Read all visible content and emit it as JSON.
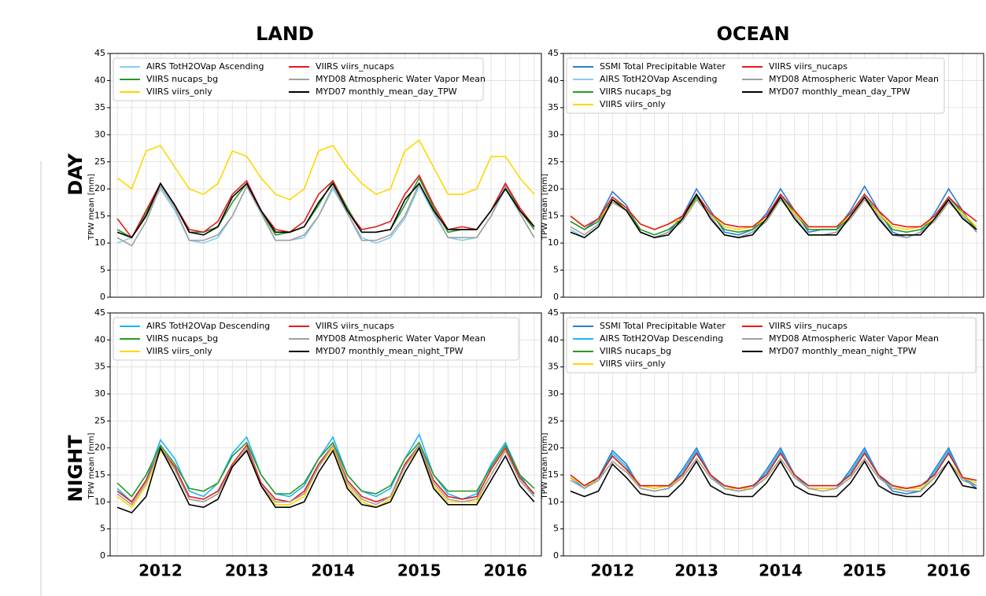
{
  "header": {
    "land": "LAND",
    "ocean": "OCEAN",
    "day": "DAY",
    "night": "NIGHT"
  },
  "chart_data": [
    {
      "type": "line",
      "ylabel": "TPW mean [mm]",
      "ylim": [
        0,
        45
      ],
      "yticks": [
        0,
        5,
        10,
        15,
        20,
        25,
        30,
        35,
        40,
        45
      ],
      "grid": true,
      "categories": [
        null,
        null,
        null,
        null,
        null,
        null,
        null,
        null,
        null,
        null,
        null,
        null,
        null,
        null,
        null,
        null,
        null,
        null,
        null,
        null,
        null,
        null,
        null,
        null,
        null,
        null,
        null,
        null,
        null,
        null
      ],
      "series": [
        {
          "name": "AIRS TotH2OVap Ascending",
          "color": "#87ceeb",
          "values": [
            10,
            11,
            15,
            20,
            16,
            10.5,
            10,
            11,
            15,
            20.5,
            16,
            10.5,
            10.5,
            11,
            15,
            20,
            15.5,
            11,
            10,
            11,
            14.5,
            20.5,
            15.5,
            11,
            10.5,
            11,
            15,
            20,
            15.5,
            11
          ]
        },
        {
          "name": "VIIRS nucaps_bg",
          "color": "#279a27",
          "values": [
            12.5,
            11,
            15.5,
            21,
            17,
            12,
            12,
            13,
            17.5,
            21,
            16,
            11.5,
            12,
            13,
            17,
            21.5,
            16.5,
            12,
            12,
            12.5,
            17,
            22,
            16.5,
            12,
            12.5,
            12.5,
            16,
            21,
            16,
            12.5
          ]
        },
        {
          "name": "VIIRS viirs_only",
          "color": "#ffd700",
          "values": [
            22,
            20,
            27,
            28,
            24,
            20,
            19,
            21,
            27,
            26,
            22,
            19,
            18,
            20,
            27,
            28,
            24,
            21,
            19,
            20,
            27,
            29,
            24,
            19,
            19,
            20,
            26,
            26,
            22,
            19
          ]
        },
        {
          "name": "VIIRS viirs_nucaps",
          "color": "#e31a1c",
          "values": [
            14.5,
            11,
            16,
            21,
            17,
            12.5,
            12,
            14,
            19,
            21.5,
            16,
            12.5,
            12,
            14,
            19,
            21.5,
            16,
            12.5,
            13,
            14,
            19,
            22.5,
            17,
            12.5,
            13,
            12.5,
            16,
            21,
            16.5,
            13
          ]
        },
        {
          "name": "MYD08 Atmospheric Water Vapor Mean",
          "color": "#a0a0a0",
          "values": [
            11,
            9.5,
            14,
            20.5,
            16.5,
            10.5,
            10.5,
            11.5,
            15,
            20.5,
            15.5,
            10.5,
            10.5,
            11.5,
            15,
            20.5,
            15.5,
            10.5,
            10.5,
            11.5,
            15,
            21,
            16,
            11,
            11,
            11,
            15,
            20.5,
            15.5,
            11
          ]
        },
        {
          "name": "MYD07 monthly_mean_day_TPW",
          "color": "#000000",
          "values": [
            12,
            11,
            15,
            21,
            17,
            12,
            11.5,
            13,
            18.5,
            21,
            16,
            12,
            12,
            13,
            17.5,
            21,
            16,
            12,
            12,
            12.5,
            18,
            21,
            16,
            12.5,
            12.5,
            12.5,
            16,
            20,
            16,
            13
          ]
        }
      ]
    },
    {
      "type": "line",
      "ylabel": "TPW mean [mm]",
      "ylim": [
        0,
        45
      ],
      "yticks": [
        0,
        5,
        10,
        15,
        20,
        25,
        30,
        35,
        40,
        45
      ],
      "grid": true,
      "categories": [
        null,
        null,
        null,
        null,
        null,
        null,
        null,
        null,
        null,
        null,
        null,
        null,
        null,
        null,
        null,
        null,
        null,
        null,
        null,
        null,
        null,
        null,
        null,
        null,
        null,
        null,
        null,
        null,
        null,
        null
      ],
      "series": [
        {
          "name": "SSMI Total Precipitable Water",
          "color": "#2a7fd4",
          "values": [
            14,
            12.5,
            14.5,
            19.5,
            17,
            12,
            11,
            12,
            15,
            20,
            16,
            12,
            11.5,
            12.5,
            15.5,
            20,
            16,
            12,
            12.5,
            12.5,
            16,
            20.5,
            16,
            12,
            11,
            12,
            15.5,
            20,
            16,
            12
          ]
        },
        {
          "name": "AIRS TotH2OVap Ascending",
          "color": "#87ceeb",
          "values": [
            12.5,
            11,
            13,
            18,
            16,
            12,
            11,
            12,
            14,
            18.5,
            15,
            11.5,
            11,
            12,
            14.5,
            18.5,
            15,
            11.5,
            11.5,
            12,
            15,
            18.5,
            15,
            11.5,
            11,
            12,
            14.5,
            18,
            15,
            12
          ]
        },
        {
          "name": "VIIRS nucaps_bg",
          "color": "#279a27",
          "values": [
            14,
            12.5,
            14,
            18,
            16.5,
            12.5,
            11.5,
            12.5,
            14.5,
            18.5,
            15.5,
            12.5,
            12,
            12.5,
            14.5,
            19,
            15.5,
            12.5,
            12.5,
            12.5,
            15,
            18.5,
            15.5,
            12.5,
            12,
            12.5,
            14.5,
            18.5,
            15.5,
            12.5
          ]
        },
        {
          "name": "VIIRS viirs_only",
          "color": "#ffd700",
          "values": [
            15,
            13,
            14.5,
            17.5,
            16.5,
            13.5,
            12.5,
            13.5,
            14.5,
            18,
            15.5,
            13,
            12.5,
            13,
            14.5,
            18,
            15.5,
            13,
            13,
            13,
            15,
            18,
            15.5,
            13,
            12.5,
            13,
            14.5,
            17.5,
            15.5,
            13
          ]
        },
        {
          "name": "VIIRS viirs_nucaps",
          "color": "#e31a1c",
          "values": [
            15,
            13,
            14.5,
            18.5,
            16.5,
            13.5,
            12.5,
            13.5,
            15,
            19,
            15.5,
            13.5,
            13,
            13,
            15,
            19,
            16,
            13,
            13,
            13,
            15.5,
            19,
            16,
            13.5,
            13,
            13,
            15,
            18.5,
            16,
            14
          ]
        },
        {
          "name": "MYD08 Atmospheric Water Vapor Mean",
          "color": "#a0a0a0",
          "values": [
            13,
            11.5,
            13.5,
            17.5,
            16,
            12,
            11,
            12,
            14,
            18,
            15,
            11.5,
            11,
            12,
            14,
            18,
            15,
            11.5,
            11.5,
            12,
            14.5,
            18,
            15,
            11.5,
            11,
            12,
            14,
            17.5,
            15,
            12
          ]
        },
        {
          "name": "MYD07 monthly_mean_day_TPW",
          "color": "#000000",
          "values": [
            12,
            11,
            13,
            18,
            16,
            12,
            11,
            11.5,
            14.5,
            19,
            14.5,
            11.5,
            11,
            11.5,
            14.5,
            18.5,
            14.5,
            11.5,
            11.5,
            11.5,
            15,
            18.5,
            14.5,
            11.5,
            11.5,
            11.5,
            14.5,
            18,
            14.5,
            12.5
          ]
        }
      ]
    },
    {
      "type": "line",
      "ylabel": "TPW mean [mm]",
      "ylim": [
        0,
        45
      ],
      "yticks": [
        0,
        5,
        10,
        15,
        20,
        25,
        30,
        35,
        40,
        45
      ],
      "grid": true,
      "categories": [
        null,
        null,
        null,
        "2012",
        null,
        null,
        null,
        null,
        null,
        "2013",
        null,
        null,
        null,
        null,
        null,
        "2014",
        null,
        null,
        null,
        null,
        null,
        "2015",
        null,
        null,
        null,
        null,
        null,
        "2016",
        null,
        null
      ],
      "series": [
        {
          "name": "AIRS TotH2OVap Descending",
          "color": "#1eb4ff",
          "values": [
            12.5,
            10,
            14,
            21.5,
            18,
            12,
            11,
            13.5,
            19,
            22,
            15,
            11.5,
            11,
            13,
            18,
            22,
            15,
            12,
            11,
            12.5,
            18,
            22.5,
            15,
            11.5,
            10.5,
            11.5,
            17,
            21,
            15,
            11
          ]
        },
        {
          "name": "VIIRS nucaps_bg",
          "color": "#279a27",
          "values": [
            13.5,
            11,
            15,
            20.5,
            17,
            12.5,
            12,
            13.5,
            18.5,
            21,
            15,
            11.5,
            11.5,
            13.5,
            18,
            21,
            15,
            12,
            11.5,
            13,
            18,
            21,
            15,
            12,
            12,
            12,
            16.5,
            20.5,
            15,
            12.5
          ]
        },
        {
          "name": "VIIRS viirs_only",
          "color": "#ffd700",
          "values": [
            11,
            9,
            13,
            19.5,
            16,
            10.5,
            10,
            11.5,
            16.5,
            19.5,
            13,
            9.5,
            9.5,
            11,
            16.5,
            20,
            13,
            10,
            9,
            10.5,
            16.5,
            20,
            13,
            10,
            10,
            10,
            15,
            19.5,
            14,
            11
          ]
        },
        {
          "name": "VIIRS viirs_nucaps",
          "color": "#e31a1c",
          "values": [
            12,
            10,
            14,
            20,
            16.5,
            11,
            10.5,
            12,
            17,
            20.5,
            13.5,
            10.5,
            10,
            12,
            17,
            20.5,
            14,
            11,
            10,
            11,
            17,
            20.5,
            14,
            11,
            10.5,
            11,
            16,
            20,
            14.5,
            11.5
          ]
        },
        {
          "name": "MYD08 Atmospheric Water Vapor Mean",
          "color": "#a0a0a0",
          "values": [
            11.5,
            9.5,
            13.5,
            20,
            16,
            10.5,
            10,
            11.5,
            16.5,
            20,
            13,
            10,
            10,
            11.5,
            16.5,
            20.5,
            13.5,
            10.5,
            9.5,
            11,
            16.5,
            20.5,
            13.5,
            10.5,
            10,
            10.5,
            15,
            19.5,
            14,
            11
          ]
        },
        {
          "name": "MYD07 monthly_mean_night_TPW",
          "color": "#000000",
          "values": [
            9,
            8,
            11,
            20,
            15,
            9.5,
            9,
            10.5,
            16.5,
            19.5,
            13,
            9,
            9,
            10,
            15.5,
            19.5,
            12.5,
            9.5,
            9,
            10,
            15.5,
            20,
            12.5,
            9.5,
            9.5,
            9.5,
            14,
            18.5,
            13,
            10
          ]
        }
      ]
    },
    {
      "type": "line",
      "ylabel": "TPW mean [mm]",
      "ylim": [
        0,
        45
      ],
      "yticks": [
        0,
        5,
        10,
        15,
        20,
        25,
        30,
        35,
        40,
        45
      ],
      "grid": true,
      "categories": [
        null,
        null,
        null,
        "2012",
        null,
        null,
        null,
        null,
        null,
        "2013",
        null,
        null,
        null,
        null,
        null,
        "2014",
        null,
        null,
        null,
        null,
        null,
        "2015",
        null,
        null,
        null,
        null,
        null,
        "2016",
        null,
        null
      ],
      "series": [
        {
          "name": "SSMI Total Precipitable Water",
          "color": "#2a7fd4",
          "values": [
            14.5,
            12.5,
            14.5,
            19.5,
            17,
            12.5,
            12,
            12.5,
            16,
            20,
            15,
            12.5,
            12,
            12.5,
            16,
            20,
            15,
            12.5,
            12.5,
            12.5,
            16,
            20,
            15,
            12,
            11.5,
            12,
            16,
            20,
            14.5,
            12.5
          ]
        },
        {
          "name": "AIRS TotH2OVap Descending",
          "color": "#1eb4ff",
          "values": [
            14.5,
            12.5,
            14,
            19,
            16.5,
            12.5,
            12,
            12.5,
            15.5,
            19.5,
            15,
            12.5,
            12,
            12.5,
            15.5,
            19.5,
            15,
            12.5,
            12.5,
            12.5,
            15.5,
            19.5,
            15,
            12.5,
            12,
            12,
            15.5,
            19.5,
            14.5,
            13
          ]
        },
        {
          "name": "VIIRS nucaps_bg",
          "color": "#279a27",
          "values": [
            14.5,
            13,
            14.5,
            18.5,
            16,
            13,
            12.5,
            13,
            15,
            19,
            15,
            13,
            12.5,
            13,
            15,
            19,
            15,
            13,
            13,
            13,
            15,
            19,
            15,
            13,
            12.5,
            13,
            15,
            19,
            14.5,
            14
          ]
        },
        {
          "name": "VIIRS viirs_only",
          "color": "#ffd700",
          "values": [
            14.5,
            13,
            14,
            17.5,
            15.5,
            13,
            12.5,
            13,
            14.5,
            18,
            14.5,
            12.5,
            12.5,
            12.5,
            14.5,
            18,
            14.5,
            12.5,
            12.5,
            12.5,
            14.5,
            18,
            14.5,
            12.5,
            12.5,
            12.5,
            14.5,
            17.5,
            14.5,
            13.5
          ]
        },
        {
          "name": "VIIRS viirs_nucaps",
          "color": "#e31a1c",
          "values": [
            15,
            13,
            14.5,
            18.5,
            16,
            13,
            13,
            13,
            15,
            19,
            15,
            13,
            12.5,
            13,
            15,
            19,
            15,
            13,
            13,
            13,
            15,
            19,
            15,
            13,
            12.5,
            13,
            15,
            19,
            14.5,
            14
          ]
        },
        {
          "name": "MYD08 Atmospheric Water Vapor Mean",
          "color": "#a0a0a0",
          "values": [
            14,
            12.5,
            14,
            17.5,
            15.5,
            12.5,
            12,
            12.5,
            14.5,
            18,
            14.5,
            12.5,
            12,
            12.5,
            14.5,
            18,
            14.5,
            12.5,
            12,
            12.5,
            14.5,
            18,
            14.5,
            12.5,
            12,
            12,
            14.5,
            17.5,
            14,
            13
          ]
        },
        {
          "name": "MYD07 monthly_mean_night_TPW",
          "color": "#000000",
          "values": [
            12,
            11,
            12,
            17,
            14.5,
            11.5,
            11,
            11,
            13.5,
            17.5,
            13,
            11.5,
            11,
            11,
            13.5,
            17.5,
            13,
            11.5,
            11,
            11,
            13.5,
            17.5,
            13,
            11.5,
            11,
            11,
            13.5,
            17.5,
            13,
            12.5
          ]
        }
      ]
    }
  ]
}
